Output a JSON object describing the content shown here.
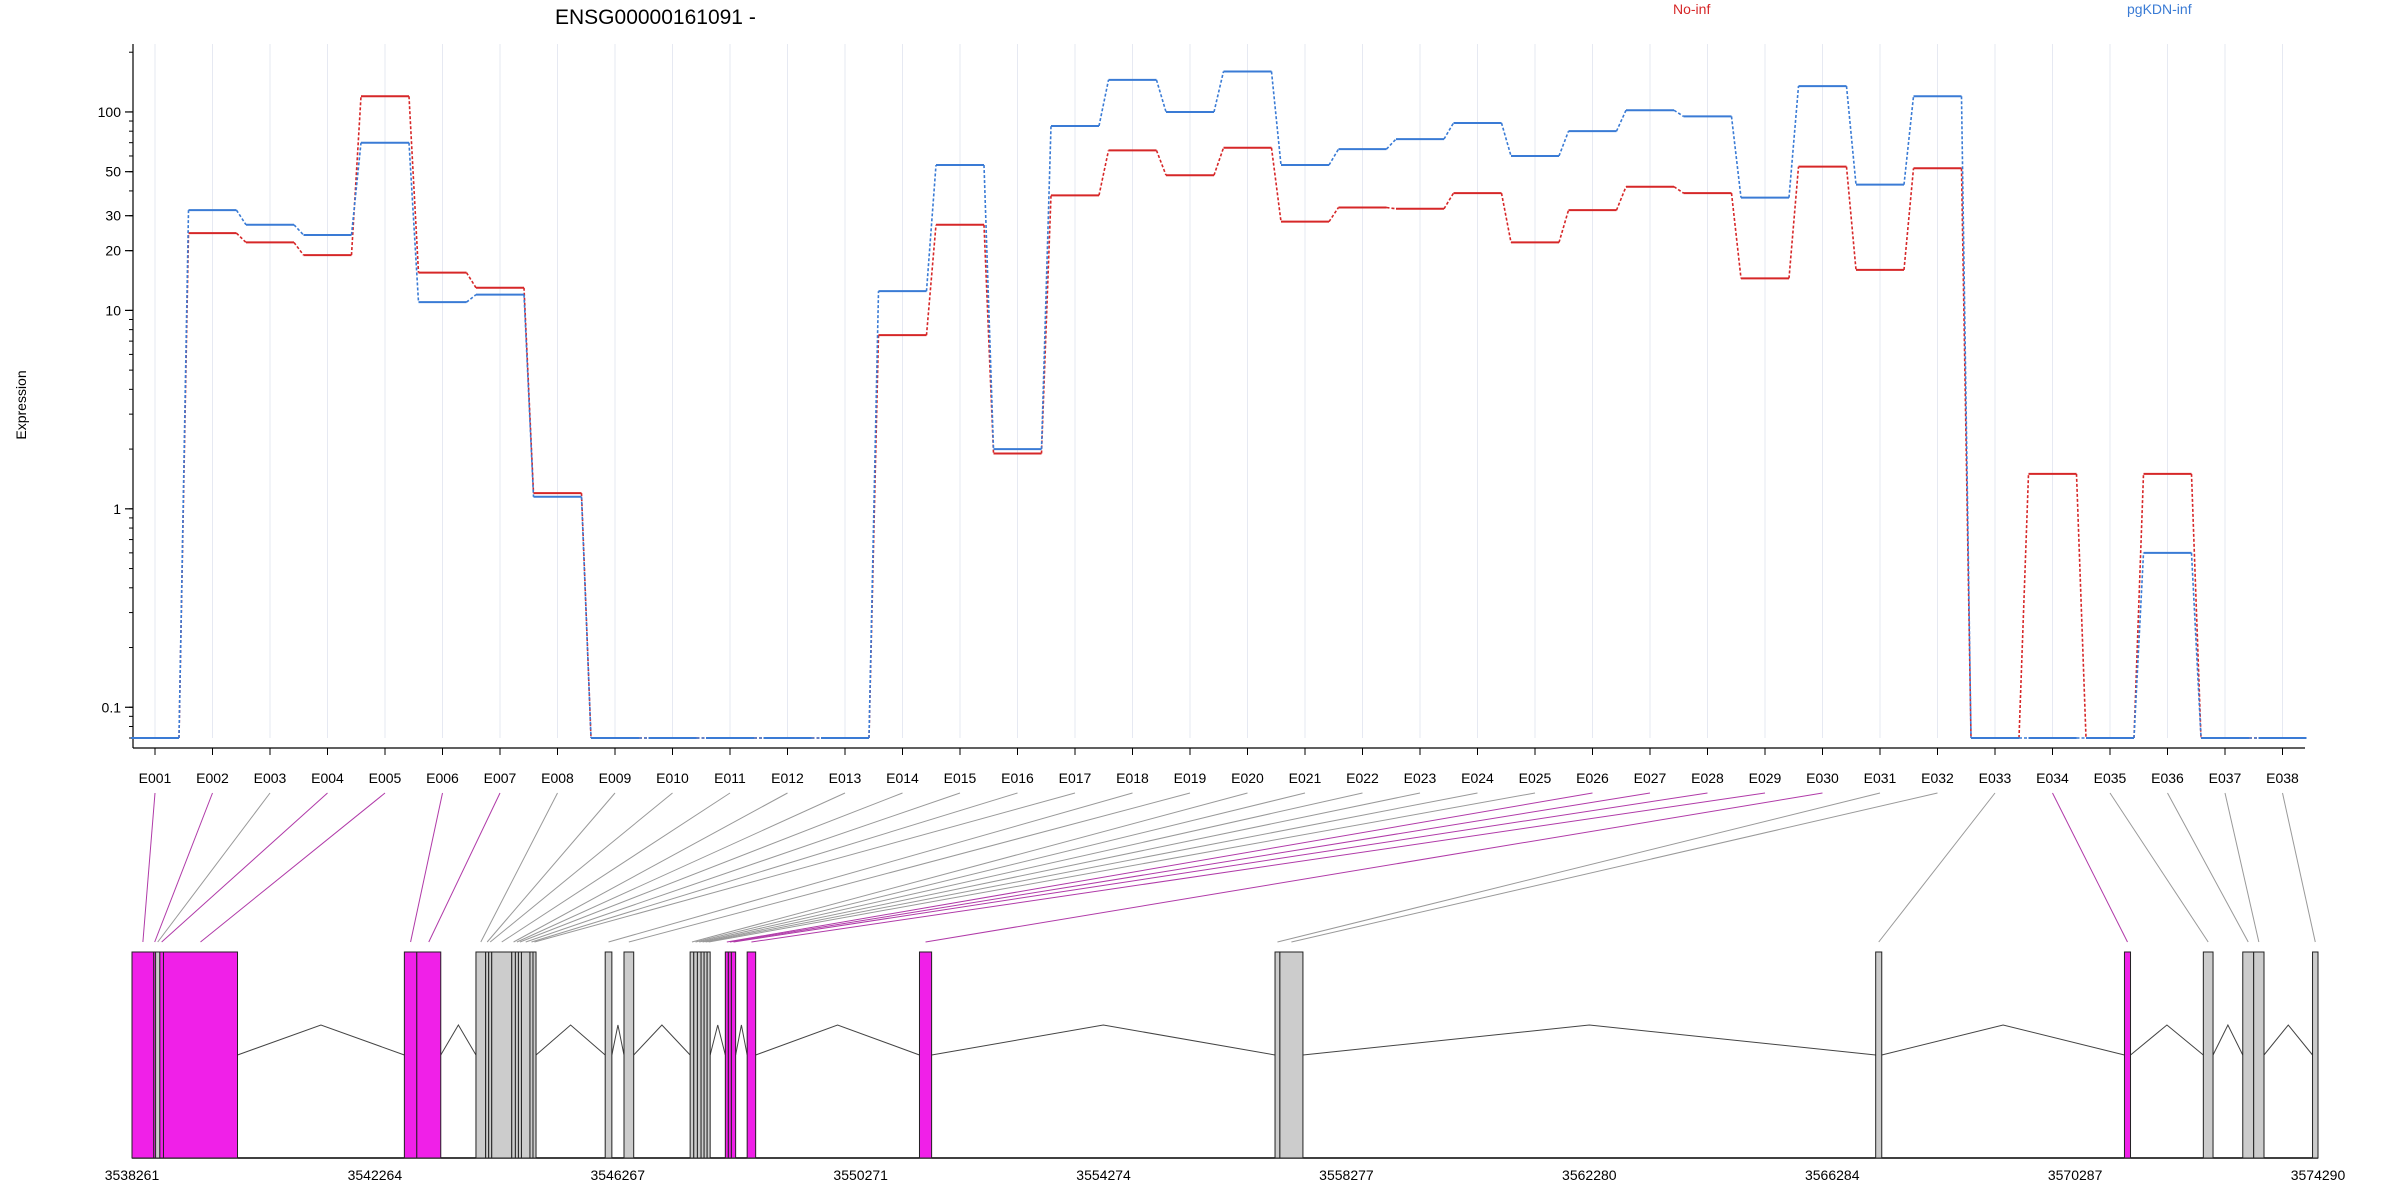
{
  "chart_data": {
    "type": "line",
    "title": "ENSG00000161091 -",
    "ylabel": "Expression",
    "yscale": "log",
    "ylim": [
      0.07,
      220
    ],
    "yticks": [
      0.1,
      1,
      10,
      20,
      30,
      50,
      100
    ],
    "ytick_labels": [
      "0.1",
      "1",
      "10",
      "20",
      "30",
      "50",
      "100"
    ],
    "grid": "vertical",
    "legend_position": "top",
    "categories": [
      "E001",
      "E002",
      "E003",
      "E004",
      "E005",
      "E006",
      "E007",
      "E008",
      "E009",
      "E010",
      "E011",
      "E012",
      "E013",
      "E014",
      "E015",
      "E016",
      "E017",
      "E018",
      "E019",
      "E020",
      "E021",
      "E022",
      "E023",
      "E024",
      "E025",
      "E026",
      "E027",
      "E028",
      "E029",
      "E030",
      "E031",
      "E032",
      "E033",
      "E034",
      "E035",
      "E036",
      "E037",
      "E038"
    ],
    "series": [
      {
        "name": "No-inf",
        "color": "#d62728",
        "values": [
          0.07,
          24.5,
          22,
          19,
          120,
          15.5,
          13,
          1.2,
          0.07,
          0.07,
          0.07,
          0.07,
          0.07,
          7.5,
          27,
          1.9,
          38,
          64,
          48,
          66,
          28,
          33,
          32.5,
          39,
          22,
          32,
          42,
          39,
          14.5,
          53,
          16,
          52,
          0.07,
          1.5,
          0.07,
          1.5,
          0.07,
          0.07
        ]
      },
      {
        "name": "pgKDN-inf",
        "color": "#3a7bd5",
        "values": [
          0.07,
          32,
          27,
          24,
          70,
          11,
          12,
          1.15,
          0.07,
          0.07,
          0.07,
          0.07,
          0.07,
          12.5,
          54,
          2.0,
          85,
          145,
          100,
          160,
          54,
          65,
          73,
          88,
          60,
          80,
          102,
          95,
          37,
          135,
          43,
          120,
          0.07,
          0.07,
          0.07,
          0.6,
          0.07,
          0.07
        ]
      }
    ],
    "gene_model": {
      "coordinate_labels": [
        "3538261",
        "3542264",
        "3546267",
        "3550271",
        "3554274",
        "3558277",
        "3562280",
        "3566284",
        "3570287",
        "3574290"
      ],
      "coord_start": 3538261,
      "coord_end": 3574290,
      "exon_regions": [
        {
          "id": "E001",
          "start": 3538261,
          "end": 3538620,
          "highlight": true
        },
        {
          "id": "E002",
          "start": 3538620,
          "end": 3538650,
          "highlight": true
        },
        {
          "id": "E003",
          "start": 3538650,
          "end": 3538720,
          "highlight": false
        },
        {
          "id": "E004",
          "start": 3538720,
          "end": 3538780,
          "highlight": true
        },
        {
          "id": "E005",
          "start": 3538780,
          "end": 3540000,
          "highlight": true
        },
        {
          "id": "E006",
          "start": 3542750,
          "end": 3542955,
          "highlight": true
        },
        {
          "id": "E007",
          "start": 3542955,
          "end": 3543350,
          "highlight": true
        },
        {
          "id": "E008",
          "start": 3543930,
          "end": 3544090,
          "highlight": false
        },
        {
          "id": "E009",
          "start": 3544090,
          "end": 3544140,
          "highlight": false
        },
        {
          "id": "E010",
          "start": 3544140,
          "end": 3544190,
          "highlight": false
        },
        {
          "id": "E011",
          "start": 3544190,
          "end": 3544520,
          "highlight": false
        },
        {
          "id": "E012",
          "start": 3544520,
          "end": 3544580,
          "highlight": false
        },
        {
          "id": "E013",
          "start": 3544580,
          "end": 3544630,
          "highlight": false
        },
        {
          "id": "E014",
          "start": 3544630,
          "end": 3544680,
          "highlight": false
        },
        {
          "id": "E015",
          "start": 3544680,
          "end": 3544820,
          "highlight": false
        },
        {
          "id": "E016",
          "start": 3544820,
          "end": 3544870,
          "highlight": false
        },
        {
          "id": "E017",
          "start": 3544870,
          "end": 3544920,
          "highlight": false
        },
        {
          "id": "E018",
          "start": 3546060,
          "end": 3546170,
          "highlight": false
        },
        {
          "id": "E019",
          "start": 3546370,
          "end": 3546530,
          "highlight": false
        },
        {
          "id": "E020",
          "start": 3547460,
          "end": 3547520,
          "highlight": false
        },
        {
          "id": "E021",
          "start": 3547520,
          "end": 3547580,
          "highlight": false
        },
        {
          "id": "E022",
          "start": 3547580,
          "end": 3547640,
          "highlight": false
        },
        {
          "id": "E023",
          "start": 3547640,
          "end": 3547690,
          "highlight": false
        },
        {
          "id": "E024",
          "start": 3547690,
          "end": 3547740,
          "highlight": false
        },
        {
          "id": "E025",
          "start": 3547740,
          "end": 3547790,
          "highlight": false
        },
        {
          "id": "E026",
          "start": 3548040,
          "end": 3548090,
          "highlight": true
        },
        {
          "id": "E027",
          "start": 3548090,
          "end": 3548140,
          "highlight": true
        },
        {
          "id": "E028",
          "start": 3548140,
          "end": 3548210,
          "highlight": true
        },
        {
          "id": "E029",
          "start": 3548400,
          "end": 3548540,
          "highlight": true
        },
        {
          "id": "E030",
          "start": 3551240,
          "end": 3551440,
          "highlight": true
        },
        {
          "id": "E031",
          "start": 3557100,
          "end": 3557180,
          "highlight": false
        },
        {
          "id": "E032",
          "start": 3557180,
          "end": 3557560,
          "highlight": false
        },
        {
          "id": "E033",
          "start": 3567000,
          "end": 3567100,
          "highlight": false
        },
        {
          "id": "E034",
          "start": 3571100,
          "end": 3571200,
          "highlight": true
        },
        {
          "id": "E035",
          "start": 3572400,
          "end": 3572560,
          "highlight": false
        },
        {
          "id": "E036",
          "start": 3573050,
          "end": 3573230,
          "highlight": false
        },
        {
          "id": "E037",
          "start": 3573230,
          "end": 3573400,
          "highlight": false
        },
        {
          "id": "E038",
          "start": 3574200,
          "end": 3574290,
          "highlight": false
        }
      ]
    }
  }
}
